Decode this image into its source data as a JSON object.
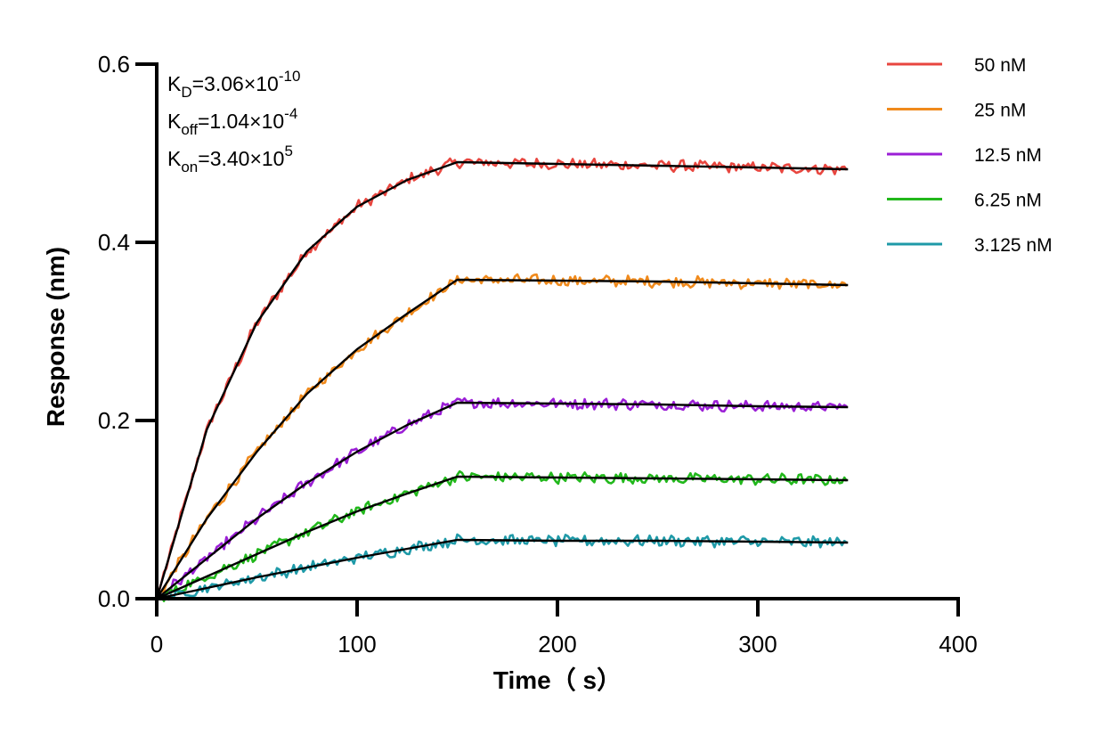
{
  "chart_data": {
    "type": "line",
    "title": "",
    "xlabel": "Time（ s）",
    "ylabel": "Response (nm)",
    "xlim": [
      0,
      400
    ],
    "ylim": [
      0,
      0.6
    ],
    "x_ticks": [
      "0",
      "100",
      "200",
      "300",
      "400"
    ],
    "y_ticks": [
      "0.0",
      "0.2",
      "0.4",
      "0.6"
    ],
    "grid": false,
    "legend_position": "top-right",
    "association_end": 150,
    "dissociation_end": 345,
    "annotations": [
      {
        "base": "K",
        "sub": "D",
        "text": "=3.06×10",
        "sup": "-10"
      },
      {
        "base": "K",
        "sub": "off",
        "text": "=1.04×10",
        "sup": "-4"
      },
      {
        "base": "K",
        "sub": "on",
        "text": "=3.40×10",
        "sup": "5"
      }
    ],
    "series": [
      {
        "name": "50 nM",
        "color": "#e8463f",
        "x": [
          0,
          25,
          50,
          75,
          100,
          125,
          150,
          200,
          250,
          300,
          345
        ],
        "y": [
          0,
          0.19,
          0.31,
          0.39,
          0.44,
          0.47,
          0.49,
          0.488,
          0.486,
          0.484,
          0.482
        ]
      },
      {
        "name": "25 nM",
        "color": "#f08a1c",
        "x": [
          0,
          25,
          50,
          75,
          100,
          125,
          150,
          200,
          250,
          300,
          345
        ],
        "y": [
          0,
          0.09,
          0.165,
          0.23,
          0.28,
          0.32,
          0.358,
          0.357,
          0.356,
          0.354,
          0.352
        ]
      },
      {
        "name": "12.5 nM",
        "color": "#9b1fd6",
        "x": [
          0,
          25,
          50,
          75,
          100,
          125,
          150,
          200,
          250,
          300,
          345
        ],
        "y": [
          0,
          0.045,
          0.09,
          0.13,
          0.165,
          0.195,
          0.22,
          0.219,
          0.218,
          0.216,
          0.215
        ]
      },
      {
        "name": "6.25 nM",
        "color": "#22b81c",
        "x": [
          0,
          25,
          50,
          75,
          100,
          125,
          150,
          200,
          250,
          300,
          345
        ],
        "y": [
          0,
          0.025,
          0.05,
          0.075,
          0.098,
          0.118,
          0.137,
          0.136,
          0.135,
          0.134,
          0.133
        ]
      },
      {
        "name": "3.125 nM",
        "color": "#1f9aa8",
        "x": [
          0,
          25,
          50,
          75,
          100,
          125,
          150,
          200,
          250,
          300,
          345
        ],
        "y": [
          0,
          0.012,
          0.024,
          0.035,
          0.046,
          0.056,
          0.066,
          0.065,
          0.065,
          0.064,
          0.063
        ]
      }
    ]
  }
}
